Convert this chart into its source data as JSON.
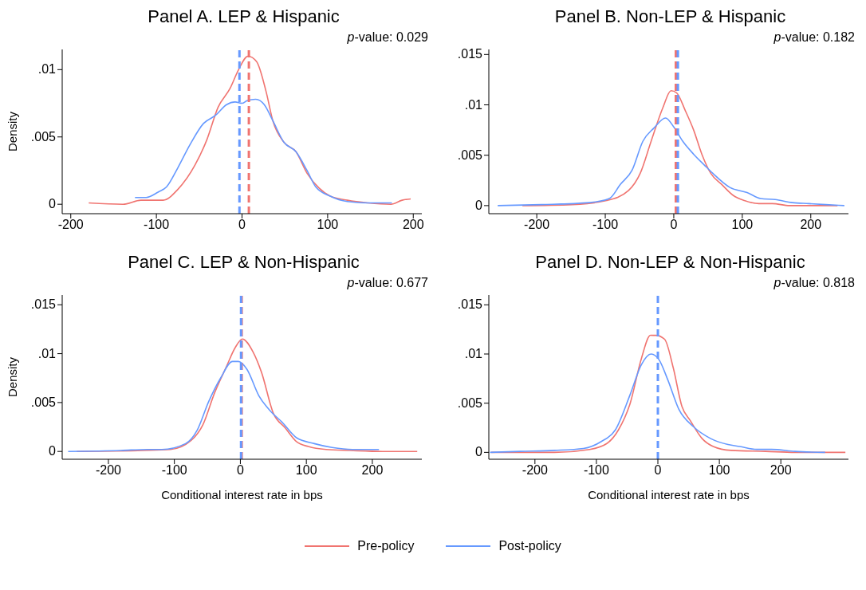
{
  "chart_data": [
    {
      "type": "line",
      "title": "Panel A. LEP & Hispanic",
      "ylabel": "Density",
      "annotations": [
        "p-value: 0.029"
      ],
      "legend": "bottom",
      "xlim": [
        -210,
        210
      ],
      "xticks": [
        -200,
        -100,
        0,
        100,
        200
      ],
      "ylim": [
        -0.0007,
        0.0115
      ],
      "yticks": [
        {
          "value": 0,
          "label": "0"
        },
        {
          "value": 0.005,
          "label": ".005"
        },
        {
          "value": 0.01,
          "label": ".01"
        }
      ],
      "series": [
        {
          "name": "Pre-policy",
          "color": "#f07470",
          "x": [
            -179,
            -139,
            -118,
            -92,
            -75,
            -55,
            -41,
            -28,
            -14,
            -4,
            7,
            17,
            28,
            36,
            49,
            63,
            76,
            90,
            103,
            123,
            147,
            174,
            187,
            197
          ],
          "values": [
            0.0001,
            0,
            0.0003,
            0.0003,
            0.0011,
            0.0029,
            0.0048,
            0.0072,
            0.0086,
            0.01,
            0.011,
            0.0106,
            0.0084,
            0.0062,
            0.0046,
            0.0039,
            0.0023,
            0.0012,
            0.0006,
            0.0003,
            0.0001,
            0,
            0.0003,
            0.0004
          ]
        },
        {
          "name": "Post-policy",
          "color": "#6699ff",
          "x": [
            -125,
            -112,
            -98,
            -88,
            -75,
            -61,
            -45,
            -31,
            -18,
            -8,
            0,
            6,
            16,
            26,
            36,
            49,
            63,
            76,
            86,
            103,
            123,
            147,
            170,
            175
          ],
          "values": [
            0.0005,
            0.0005,
            0.0009,
            0.0013,
            0.0027,
            0.0044,
            0.006,
            0.0066,
            0.0074,
            0.0076,
            0.0075,
            0.0077,
            0.0078,
            0.0074,
            0.0062,
            0.0046,
            0.0039,
            0.0025,
            0.0013,
            0.0006,
            0.0002,
            0.0001,
            0.0001,
            0.0001
          ]
        }
      ],
      "ref_lines": [
        {
          "axis": "x",
          "value": -3,
          "color": "#6699ff",
          "line_style": "dashed"
        },
        {
          "axis": "x",
          "value": 8,
          "color": "#f07470",
          "line_style": "dashed"
        }
      ]
    },
    {
      "type": "line",
      "title": "Panel B. Non-LEP & Hispanic",
      "annotations": [
        "p-value: 0.182"
      ],
      "xlim": [
        -270,
        255
      ],
      "xticks": [
        -200,
        -100,
        0,
        100,
        200
      ],
      "ylim": [
        -0.0008,
        0.0155
      ],
      "yticks": [
        {
          "value": 0,
          "label": "0"
        },
        {
          "value": 0.005,
          "label": ".005"
        },
        {
          "value": 0.01,
          "label": ".01"
        },
        {
          "value": 0.015,
          "label": ".015"
        }
      ],
      "series": [
        {
          "color": "#f07470",
          "x": [
            -221,
            -148,
            -98,
            -66,
            -49,
            -33,
            -16,
            -4,
            4,
            17,
            29,
            41,
            54,
            70,
            87,
            103,
            124,
            144,
            169,
            239
          ],
          "values": [
            0,
            0.0001,
            0.0005,
            0.0015,
            0.0032,
            0.0064,
            0.0097,
            0.0114,
            0.0112,
            0.0094,
            0.0075,
            0.0051,
            0.0032,
            0.0021,
            0.001,
            0.0005,
            0.0002,
            0.0002,
            0,
            0
          ]
        },
        {
          "color": "#6699ff",
          "x": [
            -257,
            -193,
            -123,
            -94,
            -78,
            -61,
            -45,
            -29,
            -12,
            0,
            13,
            29,
            45,
            57,
            82,
            107,
            127,
            148,
            173,
            197,
            222,
            249
          ],
          "values": [
            0,
            0.0001,
            0.0003,
            0.0007,
            0.0021,
            0.0035,
            0.0064,
            0.0077,
            0.0087,
            0.0078,
            0.0064,
            0.0051,
            0.004,
            0.0032,
            0.0018,
            0.0013,
            0.0007,
            0.0006,
            0.0003,
            0.0002,
            0.0001,
            0
          ]
        }
      ],
      "ref_lines": [
        {
          "axis": "x",
          "value": 3,
          "color": "#f07470",
          "line_style": "dashed"
        },
        {
          "axis": "x",
          "value": 6,
          "color": "#6699ff",
          "line_style": "dashed"
        }
      ]
    },
    {
      "type": "line",
      "title": "Panel C. LEP & Non-Hispanic",
      "xlabel": "Conditional interest rate in bps",
      "ylabel": "Density",
      "annotations": [
        "p-value: 0.677"
      ],
      "xlim": [
        -270,
        275
      ],
      "xticks": [
        -200,
        -100,
        0,
        100,
        200
      ],
      "ylim": [
        -0.0008,
        0.016
      ],
      "yticks": [
        {
          "value": 0,
          "label": "0"
        },
        {
          "value": 0.005,
          "label": ".005"
        },
        {
          "value": 0.01,
          "label": ".01"
        },
        {
          "value": 0.015,
          "label": ".015"
        }
      ],
      "series": [
        {
          "color": "#f07470",
          "x": [
            -248,
            -146,
            -106,
            -75,
            -57,
            -39,
            -21,
            -8,
            3,
            19,
            32,
            50,
            68,
            85,
            103,
            130,
            166,
            215,
            268
          ],
          "values": [
            0,
            0.0001,
            0.0002,
            0.0011,
            0.0027,
            0.006,
            0.0087,
            0.0106,
            0.0115,
            0.0102,
            0.0081,
            0.0039,
            0.0024,
            0.001,
            0.0005,
            0.0002,
            0.0001,
            0,
            0
          ]
        },
        {
          "color": "#6699ff",
          "x": [
            -261,
            -181,
            -141,
            -119,
            -83,
            -66,
            -48,
            -30,
            -12,
            -3,
            10,
            28,
            46,
            63,
            85,
            112,
            139,
            170,
            210
          ],
          "values": [
            0,
            0.0001,
            0.0002,
            0.0002,
            0.0008,
            0.0021,
            0.0051,
            0.0075,
            0.0092,
            0.0092,
            0.0084,
            0.0057,
            0.0041,
            0.003,
            0.0014,
            0.0008,
            0.0004,
            0.0002,
            0.0002
          ]
        }
      ],
      "ref_lines": [
        {
          "axis": "x",
          "value": 2,
          "color": "#f07470",
          "line_style": "dashed"
        },
        {
          "axis": "x",
          "value": 1,
          "color": "#6699ff",
          "line_style": "dashed"
        }
      ]
    },
    {
      "type": "line",
      "title": "Panel D. Non-LEP & Non-Hispanic",
      "xlabel": "Conditional interest rate in bps",
      "annotations": [
        "p-value: 0.818"
      ],
      "xlim": [
        -275,
        310
      ],
      "xticks": [
        -200,
        -100,
        0,
        100,
        200
      ],
      "ylim": [
        -0.0007,
        0.016
      ],
      "yticks": [
        {
          "value": 0,
          "label": "0"
        },
        {
          "value": 0.005,
          "label": ".005"
        },
        {
          "value": 0.01,
          "label": ".01"
        },
        {
          "value": 0.015,
          "label": ".015"
        }
      ],
      "series": [
        {
          "color": "#f07470",
          "x": [
            -271,
            -168,
            -111,
            -83,
            -64,
            -45,
            -27,
            -12,
            -3,
            11,
            25,
            39,
            53,
            72,
            90,
            119,
            175,
            223,
            305
          ],
          "values": [
            0,
            0,
            0.0003,
            0.0009,
            0.0023,
            0.005,
            0.0095,
            0.0119,
            0.0119,
            0.0115,
            0.0086,
            0.0047,
            0.0032,
            0.0014,
            0.0006,
            0.0002,
            0.0001,
            0,
            0
          ]
        },
        {
          "color": "#6699ff",
          "x": [
            -273,
            -224,
            -168,
            -121,
            -92,
            -69,
            -45,
            -27,
            -11,
            2,
            16,
            34,
            58,
            86,
            114,
            133,
            161,
            185,
            223,
            272
          ],
          "values": [
            0,
            0.0001,
            0.0002,
            0.0004,
            0.0011,
            0.0023,
            0.0059,
            0.0089,
            0.01,
            0.0094,
            0.0074,
            0.0044,
            0.0026,
            0.0014,
            0.0008,
            0.0006,
            0.0003,
            0.0003,
            0.0001,
            0
          ]
        }
      ],
      "ref_lines": [
        {
          "axis": "x",
          "value": 0,
          "color": "#6699ff",
          "line_style": "dashed"
        }
      ]
    }
  ]
}
